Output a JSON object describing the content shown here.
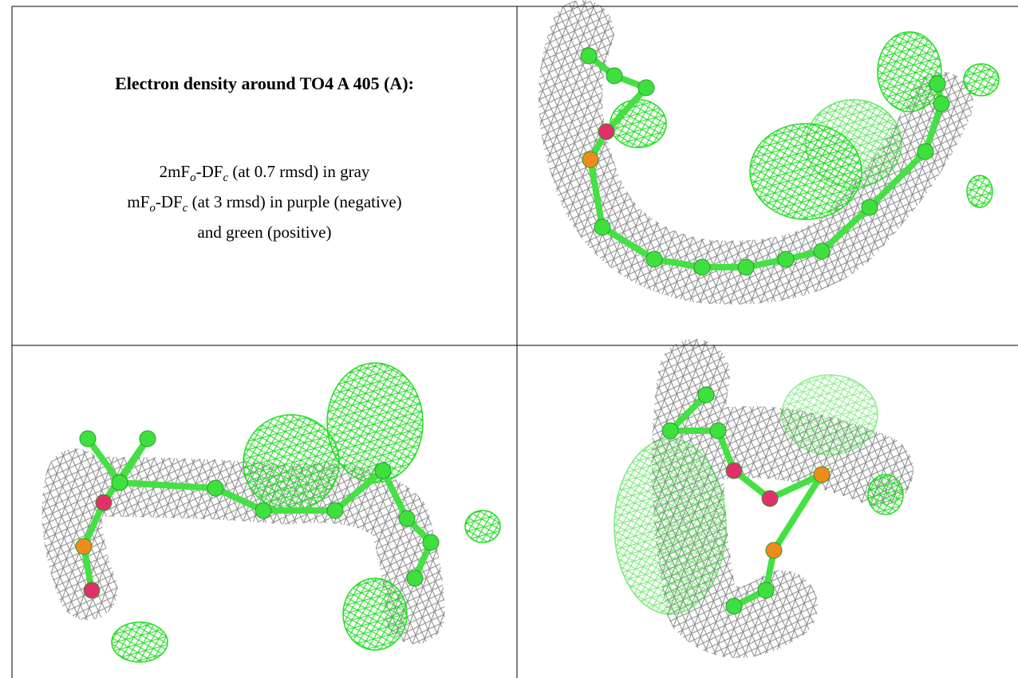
{
  "header": {
    "title": "Electron density around TO4 A 405 (A):"
  },
  "legend": {
    "lines": [
      [
        "2mF",
        "o",
        "-DF",
        "c",
        " (at 0.7 rmsd) in gray"
      ],
      [
        "mF",
        "o",
        "-DF",
        "c",
        " (at 3 rmsd) in purple (negative)"
      ],
      [
        "and green (positive)"
      ]
    ]
  }
}
